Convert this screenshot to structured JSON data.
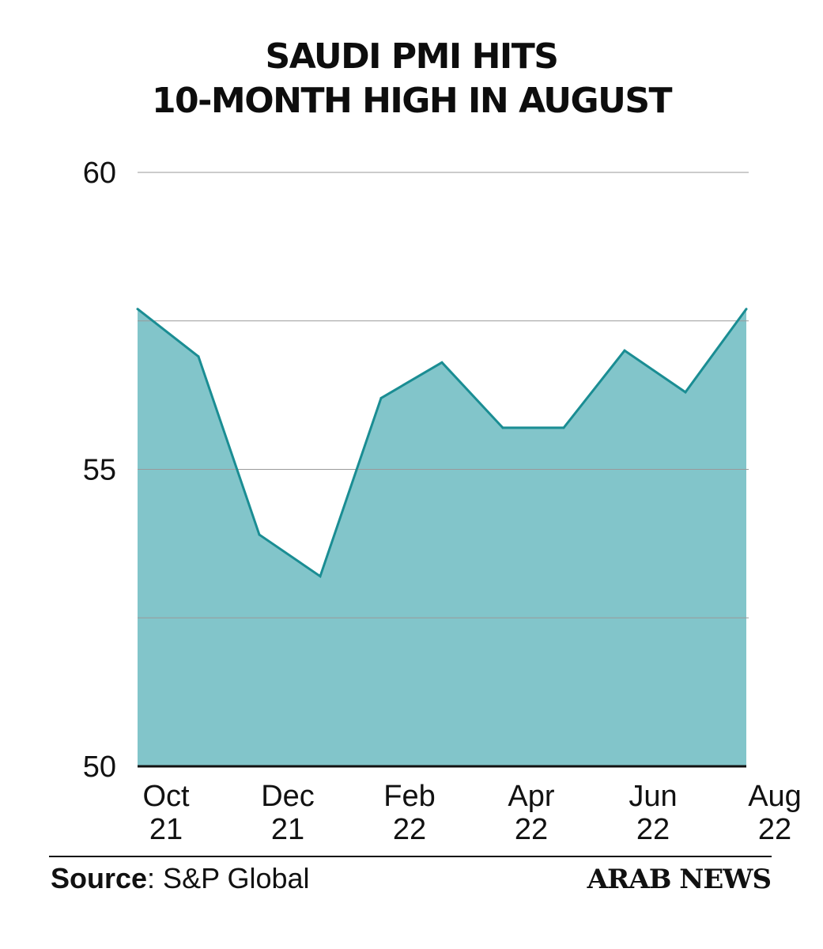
{
  "title_line1": "SAUDI PMI HITS",
  "title_line2": "10-MONTH HIGH IN AUGUST",
  "source_label": "Source",
  "source_value": ": S&P Global",
  "logo": "ARAB NEWS",
  "colors": {
    "fill": "#82c5ca",
    "line": "#1a8d93",
    "grid": "#9a9a9a",
    "axis": "#111111"
  },
  "chart_data": {
    "type": "area",
    "title": "SAUDI PMI HITS 10-MONTH HIGH IN AUGUST",
    "xlabel": "",
    "ylabel": "",
    "ylim": [
      50,
      60
    ],
    "yticks": [
      50,
      55,
      60
    ],
    "gridlines": [
      52.5,
      55,
      57.5,
      60
    ],
    "x": [
      "Oct 21",
      "Nov 21",
      "Dec 21",
      "Jan 22",
      "Feb 22",
      "Mar 22",
      "Apr 22",
      "May 22",
      "Jun 22",
      "Jul 22",
      "Aug 22"
    ],
    "xtick_labels": [
      {
        "index": 0,
        "line1": "Oct",
        "line2": "21"
      },
      {
        "index": 2,
        "line1": "Dec",
        "line2": "21"
      },
      {
        "index": 4,
        "line1": "Feb",
        "line2": "22"
      },
      {
        "index": 6,
        "line1": "Apr",
        "line2": "22"
      },
      {
        "index": 8,
        "line1": "Jun",
        "line2": "22"
      },
      {
        "index": 10,
        "line1": "Aug",
        "line2": "22"
      }
    ],
    "series": [
      {
        "values": [
          57.7,
          56.9,
          53.9,
          53.2,
          56.2,
          56.8,
          55.7,
          55.7,
          57.0,
          56.3,
          57.7
        ]
      }
    ],
    "grid": true,
    "legend": "none"
  }
}
